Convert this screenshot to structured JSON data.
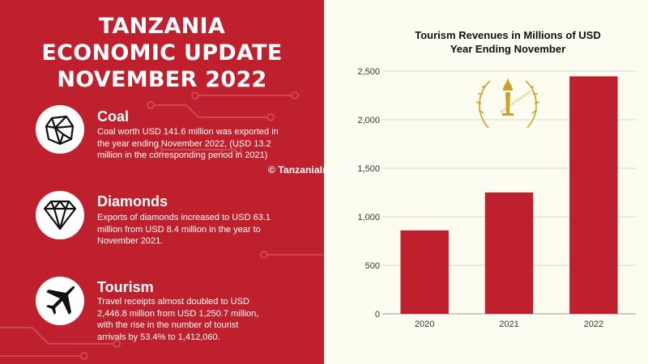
{
  "header": {
    "title_lines": [
      "TANZANIA",
      "ECONOMIC UPDATE",
      "NOVEMBER 2022"
    ]
  },
  "items": [
    {
      "icon": "coal-icon",
      "title": "Coal",
      "lines": [
        "Coal worth USD 141.6 million was exported in",
        "the year ending November 2022,  (USD 13.2",
        "million in the corresponding period in 2021)"
      ]
    },
    {
      "icon": "diamond-icon",
      "title": "Diamonds",
      "lines": [
        "Exports of diamonds increased  to USD 63.1",
        "million from USD 8.4 million in the year to",
        "November 2021."
      ]
    },
    {
      "icon": "airplane-icon",
      "title": "Tourism",
      "lines": [
        "Travel receipts almost doubled to USD",
        "2,446.8 million from USD 1,250.7 million,",
        "with the rise in the number of tourist",
        "arrivals by 53.4% to 1,412,060."
      ]
    }
  ],
  "watermark": "© TanzaniaInvest",
  "logo": {
    "icon": "bank-of-tanzania-seal-icon",
    "text": "BANK OF TANZANIA",
    "color": "#c9a227"
  },
  "colors": {
    "left_panel": "#bf202e",
    "right_panel": "#fdfcf1",
    "bar": "#bf202e"
  },
  "chart_data": {
    "type": "bar",
    "title_lines": [
      "Tourism Revenues in Millions of USD",
      "Year Ending November"
    ],
    "categories": [
      "2020",
      "2021",
      "2022"
    ],
    "values": [
      860,
      1250.7,
      2446.8
    ],
    "yticks": [
      "0",
      "500",
      "1,000",
      "1,500",
      "2,000",
      "2,500"
    ],
    "ylim": [
      0,
      2500
    ],
    "xlabel": "",
    "ylabel": "",
    "grid": true,
    "legend": "none"
  }
}
